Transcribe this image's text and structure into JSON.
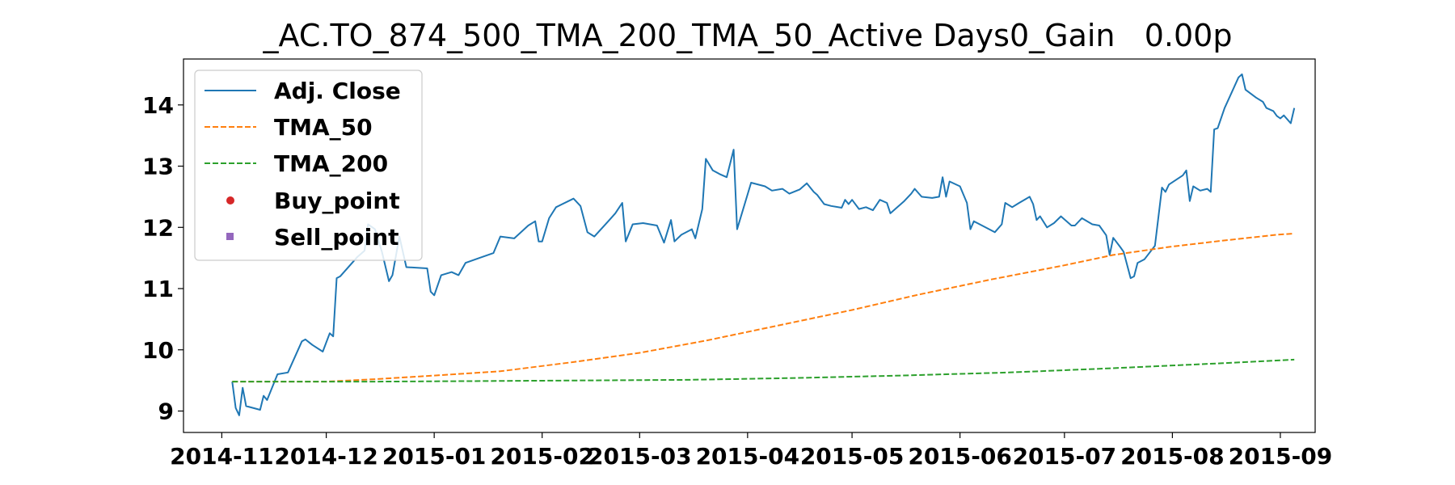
{
  "chart_data": {
    "type": "line",
    "title": "_AC.TO_874_500_TMA_200_TMA_50_Active Days0_Gain   0.00p",
    "xlabel": "",
    "ylabel": "",
    "x_type": "date",
    "xlim": [
      "2014-10-21",
      "2015-09-11"
    ],
    "ylim": [
      8.65,
      14.75
    ],
    "x_ticks": [
      "2014-11-01",
      "2014-12-01",
      "2015-01-01",
      "2015-02-01",
      "2015-03-01",
      "2015-04-01",
      "2015-05-01",
      "2015-06-01",
      "2015-07-01",
      "2015-08-01",
      "2015-09-01"
    ],
    "x_tick_labels": [
      "2014-11",
      "2014-12",
      "2015-01",
      "2015-02",
      "2015-03",
      "2015-04",
      "2015-05",
      "2015-06",
      "2015-07",
      "2015-08",
      "2015-09"
    ],
    "y_ticks": [
      9,
      10,
      11,
      12,
      13,
      14
    ],
    "y_tick_labels": [
      "9",
      "10",
      "11",
      "12",
      "13",
      "14"
    ],
    "grid": false,
    "legend_position": "upper-left",
    "series": [
      {
        "name": "Adj. Close",
        "style": "solid",
        "color": "#1f77b4",
        "points": [
          [
            "2014-11-04",
            9.48
          ],
          [
            "2014-11-05",
            9.05
          ],
          [
            "2014-11-06",
            8.93
          ],
          [
            "2014-11-07",
            9.38
          ],
          [
            "2014-11-08",
            9.08
          ],
          [
            "2014-11-12",
            9.02
          ],
          [
            "2014-11-13",
            9.25
          ],
          [
            "2014-11-14",
            9.18
          ],
          [
            "2014-11-17",
            9.6
          ],
          [
            "2014-11-20",
            9.63
          ],
          [
            "2014-11-24",
            10.14
          ],
          [
            "2014-11-25",
            10.17
          ],
          [
            "2014-11-27",
            10.08
          ],
          [
            "2014-11-30",
            9.97
          ],
          [
            "2014-12-02",
            10.27
          ],
          [
            "2014-12-03",
            10.22
          ],
          [
            "2014-12-04",
            11.17
          ],
          [
            "2014-12-05",
            11.2
          ],
          [
            "2014-12-10",
            11.52
          ],
          [
            "2014-12-12",
            11.62
          ],
          [
            "2014-12-13",
            12.05
          ],
          [
            "2014-12-15",
            11.97
          ],
          [
            "2014-12-17",
            11.6
          ],
          [
            "2014-12-19",
            11.12
          ],
          [
            "2014-12-20",
            11.22
          ],
          [
            "2014-12-22",
            11.85
          ],
          [
            "2014-12-24",
            11.35
          ],
          [
            "2014-12-30",
            11.33
          ],
          [
            "2014-12-31",
            10.95
          ],
          [
            "2015-01-01",
            10.89
          ],
          [
            "2015-01-03",
            11.22
          ],
          [
            "2015-01-06",
            11.27
          ],
          [
            "2015-01-08",
            11.22
          ],
          [
            "2015-01-10",
            11.42
          ],
          [
            "2015-01-14",
            11.5
          ],
          [
            "2015-01-18",
            11.58
          ],
          [
            "2015-01-20",
            11.85
          ],
          [
            "2015-01-24",
            11.82
          ],
          [
            "2015-01-28",
            12.03
          ],
          [
            "2015-01-30",
            12.1
          ],
          [
            "2015-01-31",
            11.77
          ],
          [
            "2015-02-01",
            11.77
          ],
          [
            "2015-02-03",
            12.15
          ],
          [
            "2015-02-05",
            12.33
          ],
          [
            "2015-02-10",
            12.47
          ],
          [
            "2015-02-12",
            12.35
          ],
          [
            "2015-02-14",
            11.92
          ],
          [
            "2015-02-16",
            11.85
          ],
          [
            "2015-02-20",
            12.1
          ],
          [
            "2015-02-22",
            12.23
          ],
          [
            "2015-02-24",
            12.4
          ],
          [
            "2015-02-25",
            11.77
          ],
          [
            "2015-02-27",
            12.05
          ],
          [
            "2015-03-02",
            12.07
          ],
          [
            "2015-03-06",
            12.03
          ],
          [
            "2015-03-08",
            11.75
          ],
          [
            "2015-03-10",
            12.12
          ],
          [
            "2015-03-11",
            11.77
          ],
          [
            "2015-03-13",
            11.88
          ],
          [
            "2015-03-16",
            11.97
          ],
          [
            "2015-03-17",
            11.82
          ],
          [
            "2015-03-19",
            12.3
          ],
          [
            "2015-03-20",
            13.12
          ],
          [
            "2015-03-22",
            12.93
          ],
          [
            "2015-03-24",
            12.87
          ],
          [
            "2015-03-26",
            12.82
          ],
          [
            "2015-03-28",
            13.27
          ],
          [
            "2015-03-29",
            11.97
          ],
          [
            "2015-04-02",
            12.73
          ],
          [
            "2015-04-06",
            12.67
          ],
          [
            "2015-04-08",
            12.6
          ],
          [
            "2015-04-11",
            12.63
          ],
          [
            "2015-04-13",
            12.55
          ],
          [
            "2015-04-16",
            12.62
          ],
          [
            "2015-04-18",
            12.72
          ],
          [
            "2015-04-20",
            12.58
          ],
          [
            "2015-04-21",
            12.53
          ],
          [
            "2015-04-23",
            12.38
          ],
          [
            "2015-04-25",
            12.35
          ],
          [
            "2015-04-28",
            12.32
          ],
          [
            "2015-04-29",
            12.45
          ],
          [
            "2015-04-30",
            12.38
          ],
          [
            "2015-05-01",
            12.45
          ],
          [
            "2015-05-03",
            12.3
          ],
          [
            "2015-05-05",
            12.33
          ],
          [
            "2015-05-07",
            12.28
          ],
          [
            "2015-05-09",
            12.45
          ],
          [
            "2015-05-11",
            12.4
          ],
          [
            "2015-05-12",
            12.23
          ],
          [
            "2015-05-16",
            12.43
          ],
          [
            "2015-05-18",
            12.55
          ],
          [
            "2015-05-19",
            12.63
          ],
          [
            "2015-05-21",
            12.5
          ],
          [
            "2015-05-24",
            12.48
          ],
          [
            "2015-05-26",
            12.5
          ],
          [
            "2015-05-27",
            12.82
          ],
          [
            "2015-05-28",
            12.5
          ],
          [
            "2015-05-29",
            12.75
          ],
          [
            "2015-06-01",
            12.67
          ],
          [
            "2015-06-03",
            12.4
          ],
          [
            "2015-06-04",
            11.97
          ],
          [
            "2015-06-05",
            12.1
          ],
          [
            "2015-06-09",
            11.98
          ],
          [
            "2015-06-11",
            11.92
          ],
          [
            "2015-06-13",
            12.05
          ],
          [
            "2015-06-14",
            12.4
          ],
          [
            "2015-06-16",
            12.33
          ],
          [
            "2015-06-18",
            12.4
          ],
          [
            "2015-06-21",
            12.5
          ],
          [
            "2015-06-22",
            12.38
          ],
          [
            "2015-06-23",
            12.12
          ],
          [
            "2015-06-24",
            12.18
          ],
          [
            "2015-06-26",
            12.0
          ],
          [
            "2015-06-28",
            12.07
          ],
          [
            "2015-06-30",
            12.18
          ],
          [
            "2015-07-03",
            12.03
          ],
          [
            "2015-07-04",
            12.03
          ],
          [
            "2015-07-06",
            12.15
          ],
          [
            "2015-07-09",
            12.05
          ],
          [
            "2015-07-11",
            12.03
          ],
          [
            "2015-07-13",
            11.87
          ],
          [
            "2015-07-14",
            11.55
          ],
          [
            "2015-07-15",
            11.83
          ],
          [
            "2015-07-17",
            11.68
          ],
          [
            "2015-07-18",
            11.6
          ],
          [
            "2015-07-20",
            11.17
          ],
          [
            "2015-07-21",
            11.2
          ],
          [
            "2015-07-22",
            11.42
          ],
          [
            "2015-07-24",
            11.48
          ],
          [
            "2015-07-27",
            11.7
          ],
          [
            "2015-07-29",
            12.65
          ],
          [
            "2015-07-30",
            12.58
          ],
          [
            "2015-07-31",
            12.7
          ],
          [
            "2015-08-04",
            12.85
          ],
          [
            "2015-08-05",
            12.93
          ],
          [
            "2015-08-06",
            12.43
          ],
          [
            "2015-08-07",
            12.67
          ],
          [
            "2015-08-09",
            12.6
          ],
          [
            "2015-08-11",
            12.63
          ],
          [
            "2015-08-12",
            12.58
          ],
          [
            "2015-08-13",
            13.6
          ],
          [
            "2015-08-14",
            13.62
          ],
          [
            "2015-08-16",
            13.95
          ],
          [
            "2015-08-18",
            14.2
          ],
          [
            "2015-08-20",
            14.45
          ],
          [
            "2015-08-21",
            14.5
          ],
          [
            "2015-08-22",
            14.25
          ],
          [
            "2015-08-25",
            14.12
          ],
          [
            "2015-08-27",
            14.05
          ],
          [
            "2015-08-28",
            13.95
          ],
          [
            "2015-08-30",
            13.9
          ],
          [
            "2015-08-31",
            13.82
          ],
          [
            "2015-09-01",
            13.78
          ],
          [
            "2015-09-02",
            13.83
          ],
          [
            "2015-09-04",
            13.7
          ],
          [
            "2015-09-05",
            13.95
          ]
        ]
      },
      {
        "name": "TMA_50",
        "style": "dashed",
        "color": "#ff7f0e",
        "points": [
          [
            "2014-11-04",
            9.48
          ],
          [
            "2014-12-01",
            9.48
          ],
          [
            "2014-12-15",
            9.52
          ],
          [
            "2015-01-01",
            9.58
          ],
          [
            "2015-01-20",
            9.65
          ],
          [
            "2015-02-10",
            9.8
          ],
          [
            "2015-03-01",
            9.95
          ],
          [
            "2015-03-20",
            10.15
          ],
          [
            "2015-04-10",
            10.4
          ],
          [
            "2015-05-01",
            10.65
          ],
          [
            "2015-05-20",
            10.9
          ],
          [
            "2015-06-10",
            11.15
          ],
          [
            "2015-07-01",
            11.38
          ],
          [
            "2015-07-15",
            11.55
          ],
          [
            "2015-07-31",
            11.68
          ],
          [
            "2015-08-15",
            11.78
          ],
          [
            "2015-08-31",
            11.88
          ],
          [
            "2015-09-05",
            11.9
          ]
        ]
      },
      {
        "name": "TMA_200",
        "style": "dashed",
        "color": "#2ca02c",
        "points": [
          [
            "2014-11-04",
            9.48
          ],
          [
            "2014-12-15",
            9.48
          ],
          [
            "2015-01-15",
            9.49
          ],
          [
            "2015-02-15",
            9.5
          ],
          [
            "2015-03-15",
            9.51
          ],
          [
            "2015-04-15",
            9.54
          ],
          [
            "2015-05-15",
            9.58
          ],
          [
            "2015-06-15",
            9.63
          ],
          [
            "2015-07-15",
            9.7
          ],
          [
            "2015-08-15",
            9.78
          ],
          [
            "2015-09-05",
            9.84
          ]
        ]
      },
      {
        "name": "Buy_point",
        "style": "marker-circle",
        "color": "#d62728",
        "points": []
      },
      {
        "name": "Sell_point",
        "style": "marker-square",
        "color": "#9467bd",
        "points": []
      }
    ]
  }
}
